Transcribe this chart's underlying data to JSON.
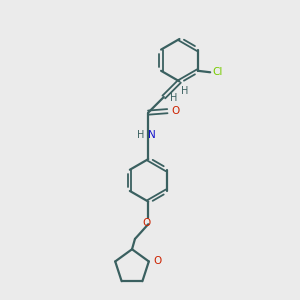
{
  "bg_color": "#ebebeb",
  "bond_color": "#3a6060",
  "N_color": "#1010cc",
  "O_color": "#cc2200",
  "Cl_color": "#77cc00",
  "figsize": [
    3.0,
    3.0
  ],
  "dpi": 100,
  "xlim": [
    0,
    10
  ],
  "ylim": [
    0,
    10
  ]
}
